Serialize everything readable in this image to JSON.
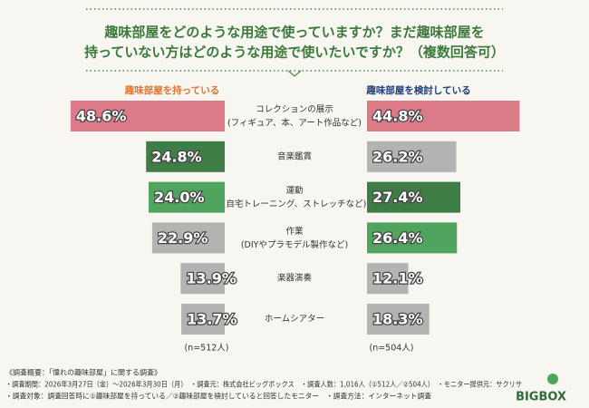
{
  "chart_data": {
    "type": "butterfly-bar",
    "title_lines": [
      "趣味部屋をどのような用途で使っていますか？まだ趣味部屋を",
      "持っていない方はどのような用途で使いたいですか？（複数回答可）"
    ],
    "categories": [
      "コレクションの展示",
      "音楽鑑賞",
      "運動",
      "作業",
      "楽器演奏",
      "ホームシアター"
    ],
    "category_notes": [
      "(フィギュア、本、アート作品など)",
      null,
      "(自宅トレーニング、ストレッチなど)",
      "(DIYやプラモデル製作など)",
      null,
      null
    ],
    "series": [
      {
        "name": "趣味部屋を持っている",
        "color": "#e2742f",
        "side": "left",
        "values": [
          48.6,
          24.8,
          24.0,
          22.9,
          13.9,
          13.7
        ],
        "value_labels": [
          "48.6%",
          "24.8%",
          "24.0%",
          "22.9%",
          "13.9%",
          "13.7%"
        ],
        "colors": [
          "#dc7a87",
          "#3f7d47",
          "#4fa55d",
          "#b5b3b1",
          "#b5b3b1",
          "#b5b3b1"
        ],
        "n_label": "(n=512人)"
      },
      {
        "name": "趣味部屋を検討している",
        "color": "#1e3d7a",
        "side": "right",
        "values": [
          44.8,
          26.2,
          27.4,
          26.4,
          12.1,
          18.3
        ],
        "value_labels": [
          "44.8%",
          "26.2%",
          "27.4%",
          "26.4%",
          "12.1%",
          "18.3%"
        ],
        "colors": [
          "#dc7a87",
          "#b5b3b1",
          "#3f7d47",
          "#4fa55d",
          "#b5b3b1",
          "#b5b3b1"
        ],
        "n_label": "(n=504人)"
      }
    ],
    "footnotes": [
      "《調査概要：「憧れの趣味部屋」に関する調査》",
      "・調査期間：2026年3月27日（金）〜2026年3月30日（月）　・調査元：株式会社ビッグボックス　・調査人数：1,016人（①512人／②504人）　・モニター提供元：サクリサ",
      "・調査対象：調査回答時に①趣味部屋を持っている／②趣味部屋を検討していると回答したモニター　・調査方法：インターネット調査"
    ],
    "logo": "BIGBOX"
  }
}
